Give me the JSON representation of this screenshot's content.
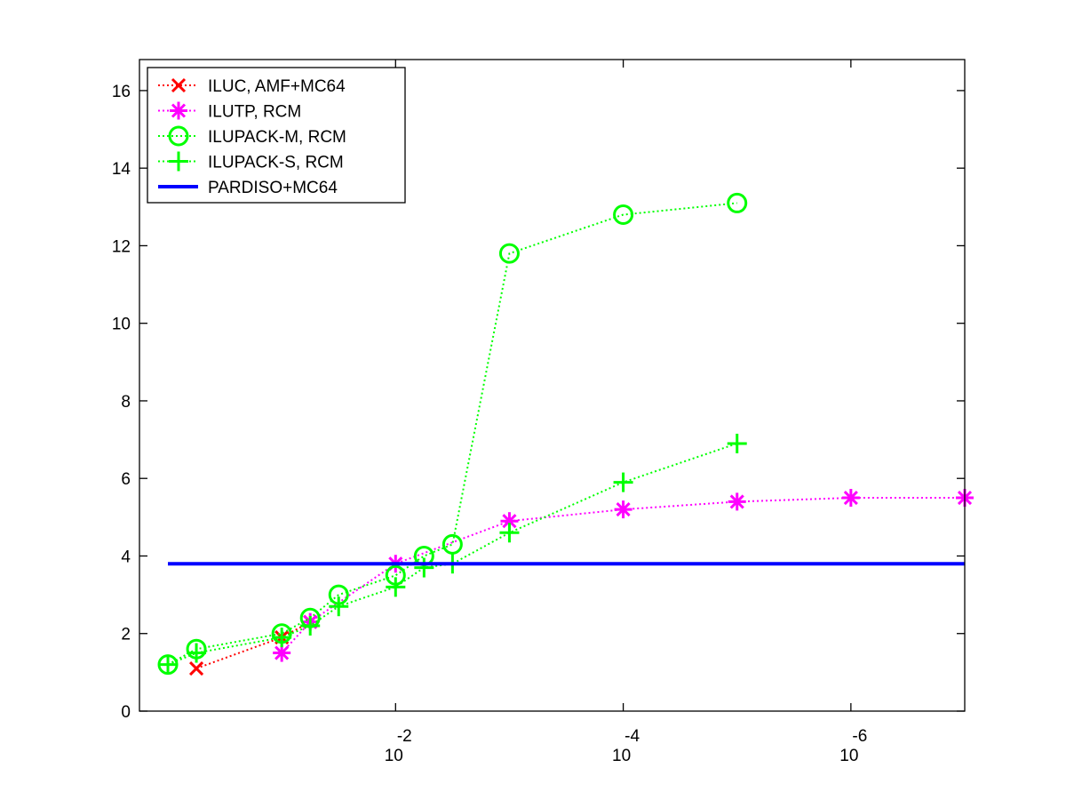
{
  "chart_data": {
    "type": "line",
    "title": "",
    "xlabel": "",
    "ylabel": "",
    "x_scale": "log",
    "x_reversed": true,
    "xlim": [
      1.778,
      1e-07
    ],
    "ylim": [
      0,
      16.8
    ],
    "grid": false,
    "legend_position": "top-left",
    "x_ticks": [
      {
        "value": 0.01,
        "base": "10",
        "exponent": "-2"
      },
      {
        "value": 0.0001,
        "base": "10",
        "exponent": "-4"
      },
      {
        "value": 1e-06,
        "base": "10",
        "exponent": "-6"
      }
    ],
    "y_ticks": [
      "0",
      "2",
      "4",
      "6",
      "8",
      "10",
      "12",
      "14",
      "16"
    ],
    "series": [
      {
        "name": "ILUC, AMF+MC64",
        "color": "#ff0000",
        "marker": "x",
        "line_style": "dotted",
        "x": [
          0.5623,
          0.1,
          0.05623
        ],
        "y": [
          1.1,
          1.9,
          2.3
        ]
      },
      {
        "name": "ILUTP, RCM",
        "color": "#ff00ff",
        "marker": "asterisk",
        "line_style": "dotted",
        "x": [
          0.1,
          0.05623,
          0.01,
          0.001,
          0.0001,
          1e-05,
          1e-06,
          1e-07
        ],
        "y": [
          1.5,
          2.3,
          3.8,
          4.9,
          5.2,
          5.4,
          5.5,
          5.5
        ]
      },
      {
        "name": "ILUPACK-M, RCM",
        "color": "#00ff00",
        "marker": "circle",
        "line_style": "dotted",
        "x": [
          1,
          0.5623,
          0.1,
          0.05623,
          0.03162,
          0.01,
          0.005623,
          0.003162,
          0.001,
          0.0001,
          1e-05
        ],
        "y": [
          1.2,
          1.6,
          2.0,
          2.4,
          3.0,
          3.5,
          4.0,
          4.3,
          11.8,
          12.8,
          13.1
        ]
      },
      {
        "name": "ILUPACK-S, RCM",
        "color": "#00ff00",
        "marker": "plus",
        "line_style": "dotted",
        "x": [
          1,
          0.5623,
          0.1,
          0.05623,
          0.03162,
          0.01,
          0.005623,
          0.003162,
          0.001,
          0.0001,
          1e-05
        ],
        "y": [
          1.2,
          1.5,
          1.9,
          2.2,
          2.7,
          3.2,
          3.7,
          3.8,
          4.6,
          5.9,
          6.9
        ]
      },
      {
        "name": "PARDISO+MC64",
        "color": "#0000ff",
        "marker": "none",
        "line_style": "solid",
        "x": [
          1,
          1e-07
        ],
        "y": [
          3.8,
          3.8
        ]
      }
    ]
  }
}
